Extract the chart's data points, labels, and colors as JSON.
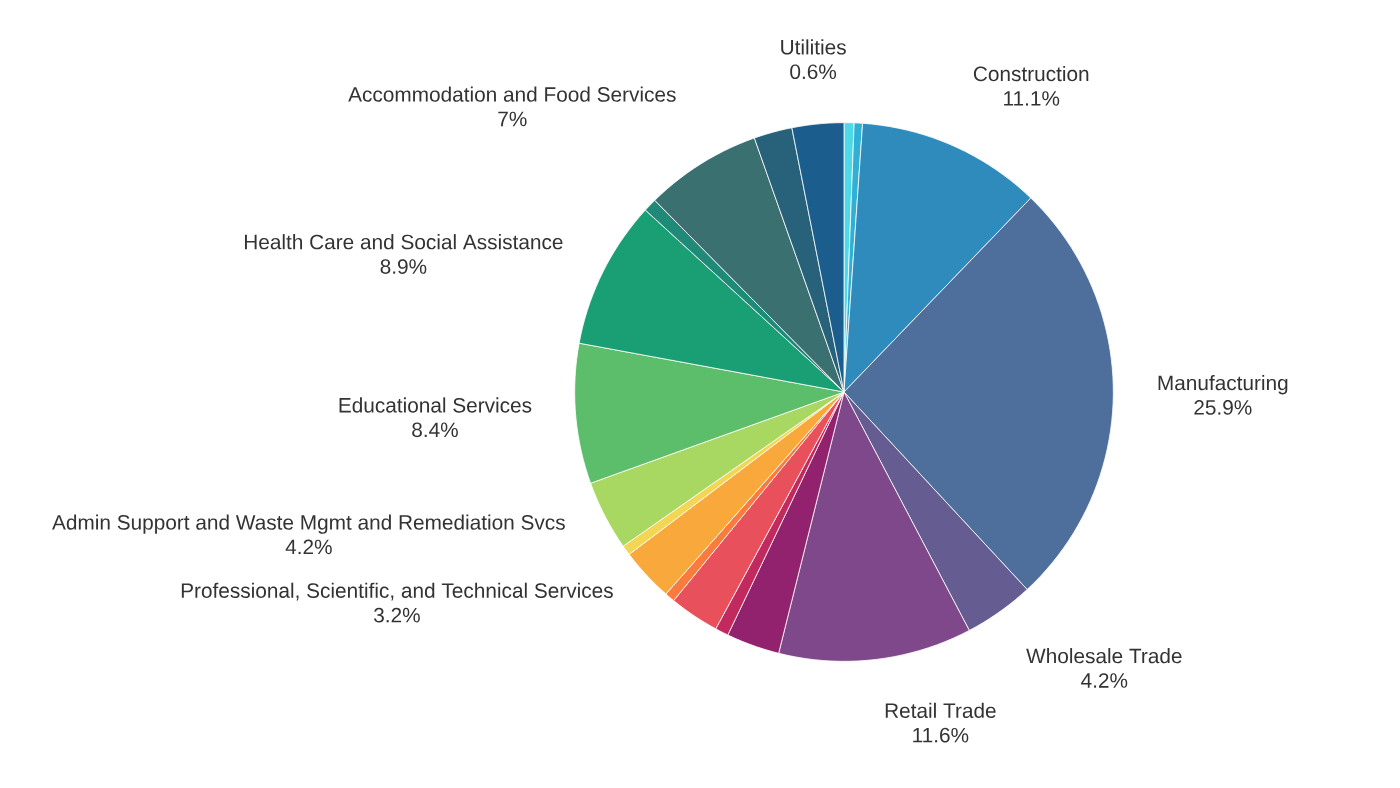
{
  "chart_data": {
    "type": "pie",
    "categories": [
      "Utilities",
      null,
      "Construction",
      "Manufacturing",
      "Wholesale Trade",
      "Retail Trade",
      null,
      null,
      null,
      null,
      "Professional, Scientific, and Technical Services",
      null,
      "Admin Support and Waste Mgmt and Remediation Svcs",
      "Educational Services",
      "Health Care and Social Assistance",
      null,
      "Accommodation and Food Services",
      null,
      null
    ],
    "values": [
      0.6,
      0.5,
      11.1,
      25.9,
      4.2,
      11.6,
      3.2,
      0.8,
      3.0,
      0.6,
      3.2,
      0.6,
      4.2,
      8.4,
      8.9,
      0.8,
      7,
      2.3,
      3.1
    ],
    "value_labels": [
      "0.6%",
      null,
      "11.1%",
      "25.9%",
      "4.2%",
      "11.6%",
      null,
      null,
      null,
      null,
      "3.2%",
      null,
      "4.2%",
      "8.4%",
      "8.9%",
      null,
      "7%",
      null,
      null
    ],
    "colors": [
      "#4fd8e6",
      "#2fb0d4",
      "#2e8bbb",
      "#4e6e9c",
      "#655c92",
      "#7e488a",
      "#92226e",
      "#c2295e",
      "#e8505b",
      "#f97b3d",
      "#f9a93b",
      "#f3d653",
      "#a8d862",
      "#5cbd6b",
      "#1a9f74",
      "#1f8a78",
      "#3a7070",
      "#27617a",
      "#1b5d8c"
    ]
  }
}
